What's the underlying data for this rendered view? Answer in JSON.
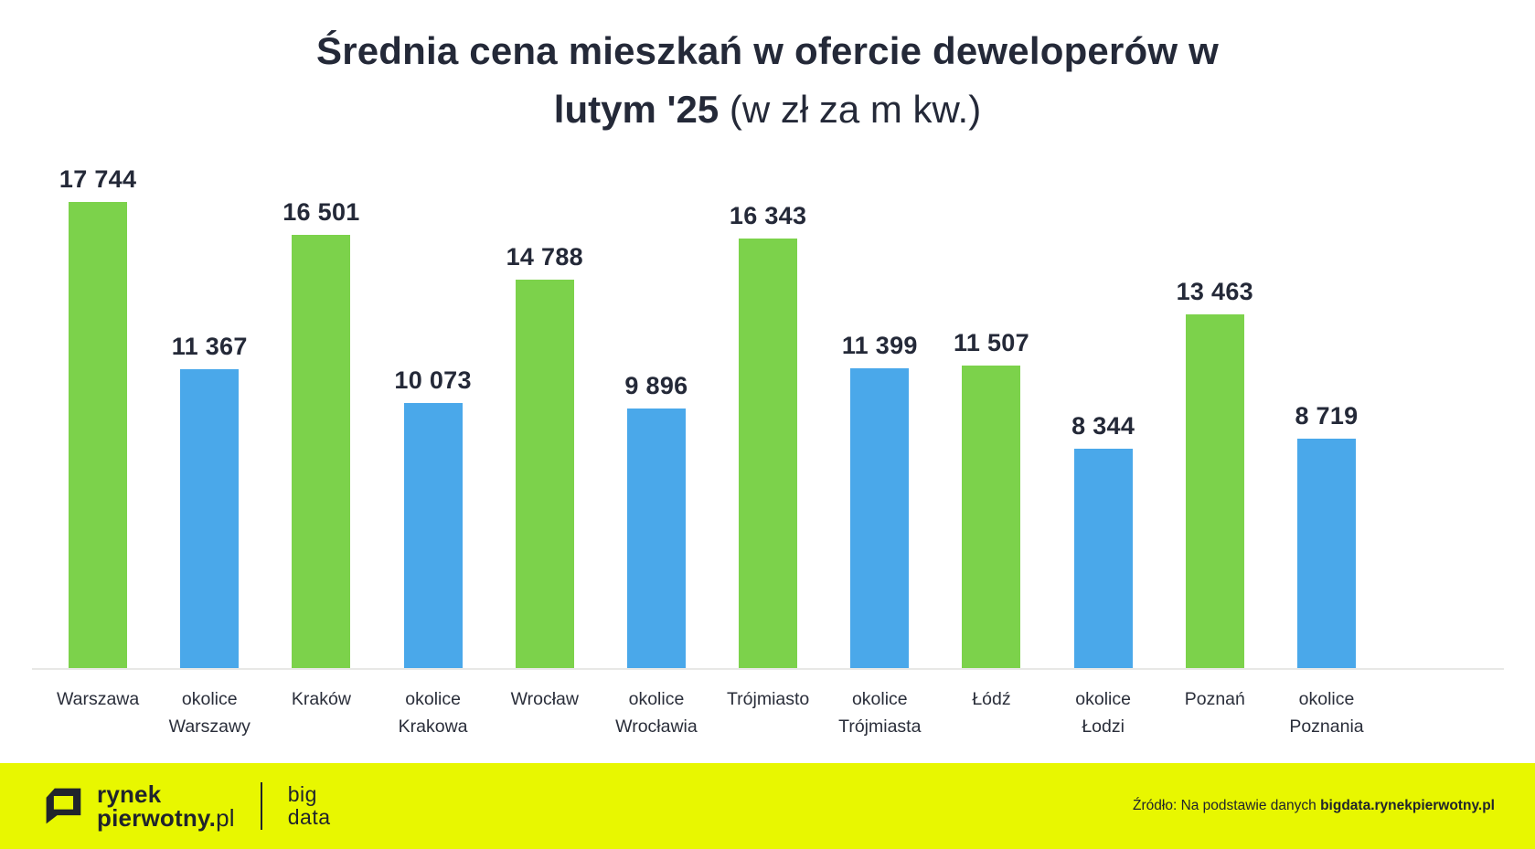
{
  "title": {
    "line1": "Średnia cena mieszkań w ofercie deweloperów w",
    "line2_bold": "lutym '25",
    "line2_light": " (w zł za m kw.)"
  },
  "chart_data": {
    "type": "bar",
    "title": "Średnia cena mieszkań w ofercie deweloperów w lutym '25 (w zł za m kw.)",
    "unit": "zł za m kw.",
    "categories": [
      "Warszawa",
      "okolice Warszawy",
      "Kraków",
      "okolice Krakowa",
      "Wrocław",
      "okolice Wrocławia",
      "Trójmiasto",
      "okolice Trójmiasta",
      "Łódź",
      "okolice Łodzi",
      "Poznań",
      "okolice Poznania"
    ],
    "values": [
      17744,
      11367,
      16501,
      10073,
      14788,
      9896,
      16343,
      11399,
      11507,
      8344,
      13463,
      8719
    ],
    "value_labels": [
      "17 744",
      "11 367",
      "16 501",
      "10 073",
      "14 788",
      "9 896",
      "16 343",
      "11 399",
      "11 507",
      "8 344",
      "13 463",
      "8 719"
    ],
    "label_lines": [
      [
        "Warszawa"
      ],
      [
        "okolice",
        "Warszawy"
      ],
      [
        "Kraków"
      ],
      [
        "okolice",
        "Krakowa"
      ],
      [
        "Wrocław"
      ],
      [
        "okolice",
        "Wrocławia"
      ],
      [
        "Trójmiasto"
      ],
      [
        "okolice",
        "Trójmiasta"
      ],
      [
        "Łódź"
      ],
      [
        "okolice",
        "Łodzi"
      ],
      [
        "Poznań"
      ],
      [
        "okolice",
        "Poznania"
      ]
    ],
    "bar_types": [
      "city",
      "suburb",
      "city",
      "suburb",
      "city",
      "suburb",
      "city",
      "suburb",
      "city",
      "suburb",
      "city",
      "suburb"
    ],
    "colors": {
      "city": "#7CD24B",
      "suburb": "#4AA8EA"
    },
    "ylim": [
      0,
      17744
    ],
    "grid": false,
    "legend": false,
    "axis_line_color": "#e8e8e6"
  },
  "footer": {
    "background": "#E8F700",
    "brand_line1": "rynek",
    "brand_line2_bold": "pierwotny.",
    "brand_line2_light": "pl",
    "bigdata_line1": "big",
    "bigdata_line2": "data",
    "source_prefix": "Źródło: Na podstawie danych ",
    "source_bold": "bigdata.rynekpierwotny.pl"
  }
}
